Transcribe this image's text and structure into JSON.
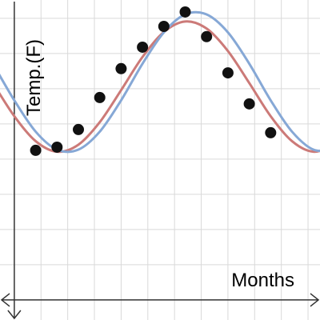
{
  "chart_data": {
    "type": "scatter",
    "xlabel": "Months",
    "ylabel": "Temp.(F)",
    "x": [
      1,
      2,
      3,
      4,
      5,
      6,
      7,
      8,
      9,
      10,
      11,
      12
    ],
    "values": [
      42.5,
      43.4,
      48.4,
      57.5,
      65.7,
      71.8,
      77.7,
      81.8,
      74.8,
      64.5,
      55.7,
      47.5
    ],
    "color": "#111111",
    "curves": [
      {
        "color": "#cc7a78",
        "x": [
          -1,
          0,
          1,
          2,
          3,
          4,
          5,
          6,
          7,
          8,
          9,
          10,
          11,
          12,
          13,
          14,
          15
        ],
        "values": [
          61.6,
          52.2,
          45.1,
          42.1,
          44.1,
          50.5,
          59.6,
          69.0,
          76.1,
          79.1,
          77.1,
          70.7,
          61.6,
          52.2,
          45.1,
          42.1,
          44.1
        ]
      },
      {
        "color": "#86a8d6",
        "x": [
          -1,
          0,
          1,
          2,
          3,
          4,
          5,
          6,
          7,
          8,
          9,
          10,
          11,
          12,
          13,
          14,
          15
        ],
        "values": [
          67.1,
          56.7,
          47.8,
          42.7,
          42.7,
          47.8,
          56.7,
          67.1,
          76.0,
          81.1,
          81.1,
          76.0,
          67.1,
          56.7,
          47.8,
          42.7,
          42.7
        ]
      }
    ],
    "xlim": [
      -0.67,
      14.31
    ],
    "ylim": [
      -5.7,
      85.2
    ],
    "xticks": [
      1.25,
      2.5,
      3.75,
      5,
      6.25,
      7.5,
      8.75,
      10,
      11.25,
      12.5,
      13.75
    ],
    "yticks": [
      10,
      20,
      30,
      40,
      50,
      60,
      70,
      80
    ],
    "grid": true
  }
}
